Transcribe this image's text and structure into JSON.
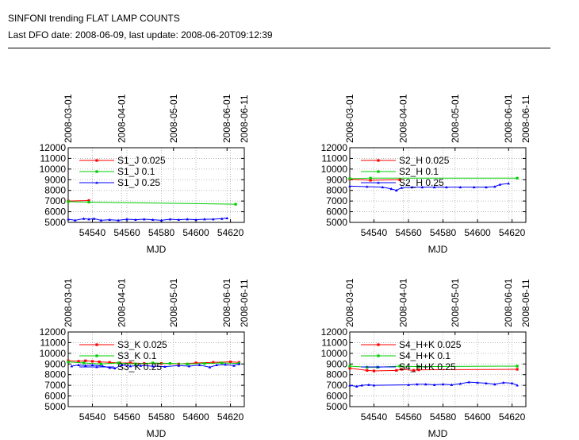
{
  "header": {
    "title": "SINFONI trending FLAT LAMP COUNTS",
    "subtitle": "Last DFO date: 2008-06-09, last update: 2008-06-20T09:12:39"
  },
  "colors": {
    "series_red": "#ff0000",
    "series_green": "#00cc00",
    "series_blue": "#0000ff",
    "grid": "#aaaaaa"
  },
  "chart_data": [
    {
      "type": "line",
      "xlabel": "MJD",
      "xlim": [
        54526,
        54628
      ],
      "ylim": [
        5000,
        12000
      ],
      "xticks": [
        54540,
        54560,
        54580,
        54600,
        54620
      ],
      "yticks": [
        5000,
        6000,
        7000,
        8000,
        9000,
        10000,
        11000,
        12000
      ],
      "top_ticks": [
        {
          "label": "2008-03-01",
          "mjd": 54526
        },
        {
          "label": "2008-04-01",
          "mjd": 54557
        },
        {
          "label": "2008-05-01",
          "mjd": 54587
        },
        {
          "label": "2008-06-01",
          "mjd": 54618
        },
        {
          "label": "2008-06-11",
          "mjd": 54628
        }
      ],
      "grid": true,
      "legend_position": "top-left",
      "series": [
        {
          "name": "S1_J 0.025",
          "color": "#ff0000",
          "marker": "square",
          "x": [
            54526,
            54538
          ],
          "y": [
            7000,
            7050
          ]
        },
        {
          "name": "S1_J 0.1",
          "color": "#00cc00",
          "marker": "square",
          "x": [
            54526,
            54538,
            54623
          ],
          "y": [
            6950,
            6900,
            6700
          ]
        },
        {
          "name": "S1_J 0.25",
          "color": "#0000ff",
          "marker": "triangle",
          "x": [
            54526,
            54530,
            54535,
            54538,
            54541,
            54545,
            54550,
            54555,
            54560,
            54565,
            54570,
            54575,
            54580,
            54585,
            54590,
            54595,
            54600,
            54605,
            54610,
            54615,
            54618
          ],
          "y": [
            5300,
            5200,
            5350,
            5300,
            5350,
            5200,
            5250,
            5200,
            5300,
            5250,
            5300,
            5250,
            5200,
            5300,
            5250,
            5300,
            5250,
            5300,
            5300,
            5350,
            5400
          ]
        }
      ]
    },
    {
      "type": "line",
      "xlabel": "MJD",
      "xlim": [
        54526,
        54628
      ],
      "ylim": [
        5000,
        12000
      ],
      "xticks": [
        54540,
        54560,
        54580,
        54600,
        54620
      ],
      "yticks": [
        5000,
        6000,
        7000,
        8000,
        9000,
        10000,
        11000,
        12000
      ],
      "top_ticks": [
        {
          "label": "2008-03-01",
          "mjd": 54526
        },
        {
          "label": "2008-04-01",
          "mjd": 54557
        },
        {
          "label": "2008-05-01",
          "mjd": 54587
        },
        {
          "label": "2008-06-01",
          "mjd": 54618
        },
        {
          "label": "2008-06-11",
          "mjd": 54628
        }
      ],
      "grid": true,
      "legend_position": "top-left",
      "series": [
        {
          "name": "S2_H 0.025",
          "color": "#ff0000",
          "marker": "square",
          "x": [
            54526,
            54538,
            54555
          ],
          "y": [
            9050,
            8950,
            9000
          ]
        },
        {
          "name": "S2_H 0.1",
          "color": "#00cc00",
          "marker": "square",
          "x": [
            54526,
            54538,
            54623
          ],
          "y": [
            9100,
            9150,
            9150
          ]
        },
        {
          "name": "S2_H 0.25",
          "color": "#0000ff",
          "marker": "triangle",
          "x": [
            54526,
            54536,
            54545,
            54550,
            54553,
            54556,
            54562,
            54568,
            54575,
            54582,
            54590,
            54598,
            54605,
            54610,
            54613,
            54618
          ],
          "y": [
            8400,
            8350,
            8300,
            8150,
            8000,
            8250,
            8300,
            8300,
            8300,
            8300,
            8300,
            8300,
            8300,
            8350,
            8550,
            8650
          ]
        }
      ]
    },
    {
      "type": "line",
      "xlabel": "MJD",
      "xlim": [
        54526,
        54628
      ],
      "ylim": [
        5000,
        12000
      ],
      "xticks": [
        54540,
        54560,
        54580,
        54600,
        54620
      ],
      "yticks": [
        5000,
        6000,
        7000,
        8000,
        9000,
        10000,
        11000,
        12000
      ],
      "top_ticks": [
        {
          "label": "2008-03-01",
          "mjd": 54526
        },
        {
          "label": "2008-04-01",
          "mjd": 54557
        },
        {
          "label": "2008-05-01",
          "mjd": 54587
        },
        {
          "label": "2008-06-01",
          "mjd": 54618
        },
        {
          "label": "2008-06-11",
          "mjd": 54628
        }
      ],
      "grid": true,
      "legend_position": "top-left",
      "series": [
        {
          "name": "S3_K 0.025",
          "color": "#ff0000",
          "marker": "square",
          "x": [
            54526,
            54532,
            54536,
            54540,
            54544,
            54550,
            54556,
            54562,
            54570,
            54580,
            54590,
            54600,
            54610,
            54620,
            54625
          ],
          "y": [
            9300,
            9250,
            9300,
            9250,
            9200,
            9150,
            9100,
            9100,
            9050,
            9050,
            9000,
            9100,
            9150,
            9200,
            9150
          ]
        },
        {
          "name": "S3_K 0.1",
          "color": "#00cc00",
          "marker": "square",
          "x": [
            54526,
            54535,
            54545,
            54555,
            54565,
            54575,
            54585,
            54595,
            54605,
            54615,
            54625
          ],
          "y": [
            9200,
            9100,
            9000,
            9100,
            9000,
            9100,
            9050,
            9000,
            9050,
            9100,
            9050
          ]
        },
        {
          "name": "S3_K 0.25",
          "color": "#0000ff",
          "marker": "triangle",
          "x": [
            54528,
            54532,
            54536,
            54540,
            54546,
            54550,
            54553,
            54557,
            54562,
            54568,
            54575,
            54582,
            54590,
            54596,
            54602,
            54608,
            54612,
            54617,
            54622,
            54625
          ],
          "y": [
            8800,
            8900,
            8850,
            8900,
            8800,
            8650,
            8600,
            8900,
            8800,
            8850,
            8800,
            8750,
            8850,
            8800,
            8900,
            8700,
            8900,
            8950,
            8850,
            9000
          ]
        }
      ]
    },
    {
      "type": "line",
      "xlabel": "MJD",
      "xlim": [
        54526,
        54628
      ],
      "ylim": [
        5000,
        12000
      ],
      "xticks": [
        54540,
        54560,
        54580,
        54600,
        54620
      ],
      "yticks": [
        5000,
        6000,
        7000,
        8000,
        9000,
        10000,
        11000,
        12000
      ],
      "top_ticks": [
        {
          "label": "2008-03-01",
          "mjd": 54526
        },
        {
          "label": "2008-04-01",
          "mjd": 54557
        },
        {
          "label": "2008-05-01",
          "mjd": 54587
        },
        {
          "label": "2008-06-01",
          "mjd": 54618
        },
        {
          "label": "2008-06-11",
          "mjd": 54628
        }
      ],
      "grid": true,
      "legend_position": "top-left",
      "series": [
        {
          "name": "S4_H+K 0.025",
          "color": "#ff0000",
          "marker": "square",
          "x": [
            54526,
            54536,
            54540,
            54553,
            54556,
            54563,
            54566,
            54623
          ],
          "y": [
            8600,
            8400,
            8350,
            8400,
            8500,
            8400,
            8450,
            8500
          ]
        },
        {
          "name": "S4_H+K 0.1",
          "color": "#00cc00",
          "marker": "square",
          "x": [
            54526,
            54536,
            54542,
            54555,
            54566,
            54623
          ],
          "y": [
            8800,
            8700,
            8700,
            8800,
            8750,
            8800
          ]
        },
        {
          "name": "S4_H+K 0.25",
          "color": "#0000ff",
          "marker": "triangle",
          "x": [
            54526,
            54530,
            54533,
            54537,
            54540,
            54560,
            54565,
            54570,
            54575,
            54580,
            54585,
            54590,
            54595,
            54600,
            54605,
            54610,
            54615,
            54620,
            54623
          ],
          "y": [
            7000,
            6900,
            7000,
            7050,
            7000,
            7050,
            7100,
            7100,
            7050,
            7100,
            7050,
            7150,
            7300,
            7250,
            7200,
            7100,
            7250,
            7200,
            7000
          ]
        }
      ]
    }
  ]
}
